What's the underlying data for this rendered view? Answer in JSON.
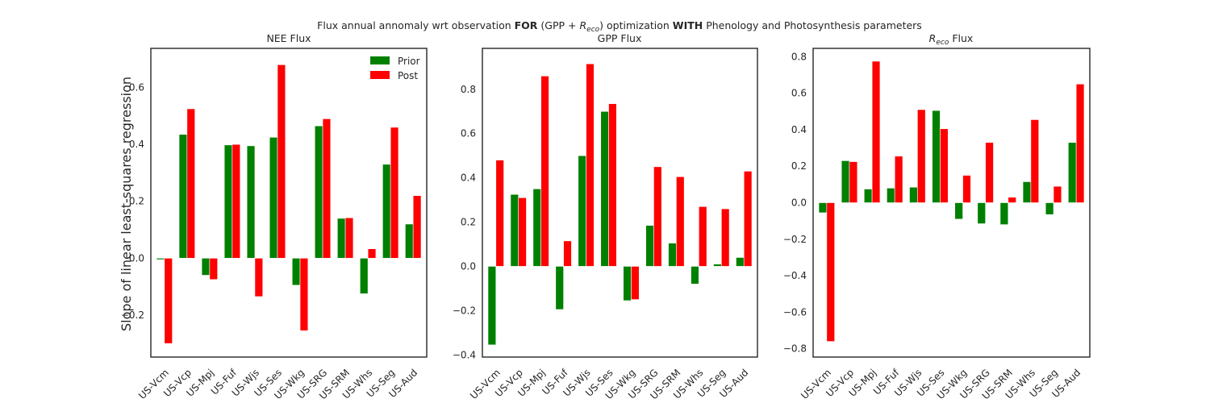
{
  "figure": {
    "suptitle_pre": "Flux annual annomaly wrt observation ",
    "suptitle_for": "FOR",
    "suptitle_mid": " (GPP + ",
    "suptitle_reco_base": "R",
    "suptitle_reco_sub": "eco",
    "suptitle_mid2": ") optimization ",
    "suptitle_with": "WITH",
    "suptitle_post": " Phenology and Photosynthesis parameters",
    "ylabel": "Slope of linear least-squares regression"
  },
  "colors": {
    "prior": "#008000",
    "post": "#ff0000",
    "axes": "#262626"
  },
  "chart_data": [
    {
      "type": "bar",
      "title": "NEE Flux",
      "categories": [
        "US-Vcm",
        "US-Vcp",
        "US-Mpj",
        "US-Fuf",
        "US-Wjs",
        "US-Ses",
        "US-Wkg",
        "US-SRG",
        "US-SRM",
        "US-Whs",
        "US-Seg",
        "US-Aud"
      ],
      "series": [
        {
          "name": "Prior",
          "values": [
            -0.005,
            0.435,
            -0.06,
            0.398,
            0.395,
            0.425,
            -0.095,
            0.465,
            0.14,
            -0.125,
            0.33,
            0.12
          ]
        },
        {
          "name": "Post",
          "values": [
            -0.3,
            0.525,
            -0.075,
            0.4,
            -0.135,
            0.68,
            -0.255,
            0.49,
            0.142,
            0.033,
            0.46,
            0.22
          ]
        }
      ],
      "ylim": [
        -0.3475,
        0.7375
      ],
      "yticks": [
        -0.2,
        0.0,
        0.2,
        0.4,
        0.6
      ],
      "ytick_labels": [
        "−0.2",
        "0.0",
        "0.2",
        "0.4",
        "0.6"
      ],
      "legend": "top-right"
    },
    {
      "type": "bar",
      "title": "GPP Flux",
      "categories": [
        "US-Vcm",
        "US-Vcp",
        "US-Mpj",
        "US-Fuf",
        "US-Wjs",
        "US-Ses",
        "US-Wkg",
        "US-SRG",
        "US-SRM",
        "US-Whs",
        "US-Seg",
        "US-Aud"
      ],
      "series": [
        {
          "name": "Prior",
          "values": [
            -0.355,
            0.325,
            0.35,
            -0.195,
            0.5,
            0.7,
            -0.155,
            0.185,
            0.105,
            -0.08,
            0.01,
            0.04
          ]
        },
        {
          "name": "Post",
          "values": [
            0.48,
            0.31,
            0.86,
            0.115,
            0.915,
            0.735,
            -0.15,
            0.45,
            0.405,
            0.27,
            0.26,
            0.43
          ]
        }
      ],
      "ylim": [
        -0.41,
        0.985
      ],
      "yticks": [
        -0.4,
        -0.2,
        0.0,
        0.2,
        0.4,
        0.6,
        0.8
      ],
      "ytick_labels": [
        "−0.4",
        "−0.2",
        "0.0",
        "0.2",
        "0.4",
        "0.6",
        "0.8"
      ]
    },
    {
      "type": "bar",
      "title_base": "R",
      "title_sub": "eco",
      "title_rest": " Flux",
      "categories": [
        "US-Vcm",
        "US-Vcp",
        "US-Mpj",
        "US-Fuf",
        "US-Wjs",
        "US-Ses",
        "US-Wkg",
        "US-SRG",
        "US-SRM",
        "US-Whs",
        "US-Seg",
        "US-Aud"
      ],
      "series": [
        {
          "name": "Prior",
          "values": [
            -0.055,
            0.23,
            0.075,
            0.08,
            0.085,
            0.505,
            -0.09,
            -0.115,
            -0.12,
            0.115,
            -0.065,
            0.33
          ]
        },
        {
          "name": "Post",
          "values": [
            -0.76,
            0.225,
            0.775,
            0.255,
            0.51,
            0.405,
            0.15,
            0.33,
            0.03,
            0.455,
            0.09,
            0.65
          ]
        }
      ],
      "ylim": [
        -0.8455,
        0.8455
      ],
      "yticks": [
        -0.8,
        -0.6,
        -0.4,
        -0.2,
        0.0,
        0.2,
        0.4,
        0.6,
        0.8
      ],
      "ytick_labels": [
        "−0.8",
        "−0.6",
        "−0.4",
        "−0.2",
        "0.0",
        "0.2",
        "0.4",
        "0.6",
        "0.8"
      ]
    }
  ]
}
